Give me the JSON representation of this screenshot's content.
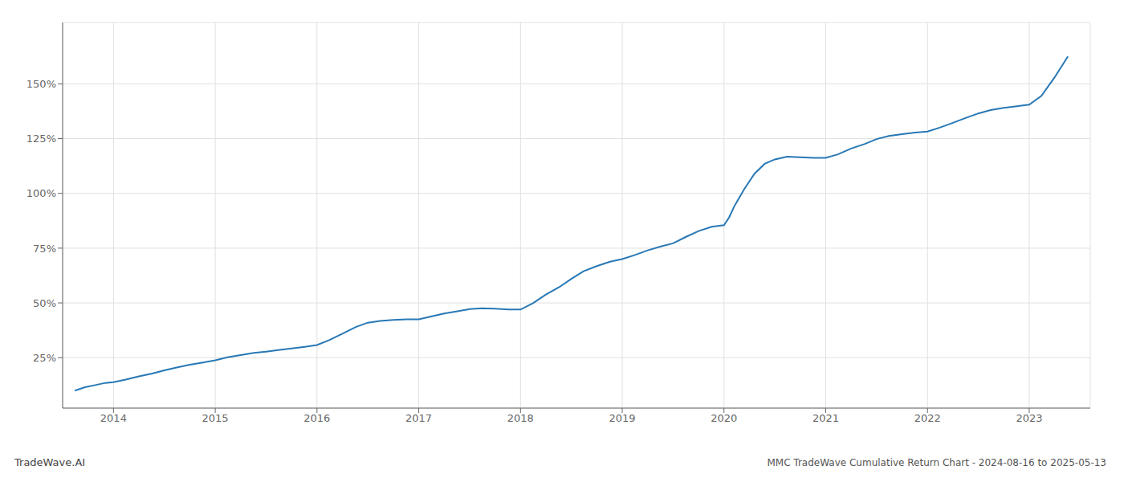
{
  "chart_data": {
    "type": "line",
    "title": "MMC TradeWave Cumulative Return Chart - 2024-08-16 to 2025-05-13",
    "annotations": [
      "TradeWave.AI"
    ],
    "color": "#2878b5",
    "grid": true,
    "xlim": [
      2013.5,
      2023.6
    ],
    "xticks": [
      2014,
      2015,
      2016,
      2017,
      2018,
      2019,
      2020,
      2021,
      2022,
      2023
    ],
    "ylim": [
      0.02,
      1.78
    ],
    "yticks": [
      {
        "value": 0.25,
        "label": "25%"
      },
      {
        "value": 0.5,
        "label": "50%"
      },
      {
        "value": 0.75,
        "label": "75%"
      },
      {
        "value": 1.0,
        "label": "100%"
      },
      {
        "value": 1.25,
        "label": "125%"
      },
      {
        "value": 1.5,
        "label": "150%"
      }
    ],
    "x": [
      2013.62,
      2013.72,
      2013.82,
      2013.92,
      2014.0,
      2014.12,
      2014.25,
      2014.38,
      2014.5,
      2014.62,
      2014.75,
      2014.88,
      2015.0,
      2015.12,
      2015.25,
      2015.38,
      2015.5,
      2015.62,
      2015.75,
      2015.88,
      2016.0,
      2016.12,
      2016.25,
      2016.38,
      2016.5,
      2016.62,
      2016.75,
      2016.88,
      2017.0,
      2017.12,
      2017.25,
      2017.38,
      2017.5,
      2017.62,
      2017.75,
      2017.88,
      2018.0,
      2018.12,
      2018.25,
      2018.38,
      2018.5,
      2018.62,
      2018.75,
      2018.88,
      2019.0,
      2019.12,
      2019.25,
      2019.38,
      2019.5,
      2019.62,
      2019.75,
      2019.88,
      2020.0,
      2020.05,
      2020.1,
      2020.2,
      2020.3,
      2020.4,
      2020.5,
      2020.62,
      2020.75,
      2020.88,
      2021.0,
      2021.12,
      2021.25,
      2021.38,
      2021.5,
      2021.62,
      2021.75,
      2021.88,
      2022.0,
      2022.12,
      2022.25,
      2022.38,
      2022.5,
      2022.62,
      2022.75,
      2022.88,
      2023.0,
      2023.12,
      2023.25,
      2023.38
    ],
    "values": [
      0.1,
      0.115,
      0.125,
      0.135,
      0.138,
      0.15,
      0.165,
      0.178,
      0.192,
      0.205,
      0.218,
      0.228,
      0.238,
      0.252,
      0.262,
      0.272,
      0.278,
      0.285,
      0.292,
      0.3,
      0.308,
      0.33,
      0.36,
      0.39,
      0.41,
      0.418,
      0.422,
      0.425,
      0.425,
      0.438,
      0.452,
      0.462,
      0.472,
      0.476,
      0.474,
      0.47,
      0.47,
      0.498,
      0.538,
      0.572,
      0.61,
      0.645,
      0.668,
      0.688,
      0.7,
      0.718,
      0.74,
      0.758,
      0.772,
      0.8,
      0.828,
      0.848,
      0.855,
      0.89,
      0.94,
      1.02,
      1.09,
      1.135,
      1.155,
      1.168,
      1.165,
      1.162,
      1.162,
      1.178,
      1.205,
      1.225,
      1.248,
      1.262,
      1.27,
      1.278,
      1.282,
      1.3,
      1.322,
      1.345,
      1.365,
      1.38,
      1.39,
      1.398,
      1.405,
      1.445,
      1.53,
      1.625
    ]
  }
}
